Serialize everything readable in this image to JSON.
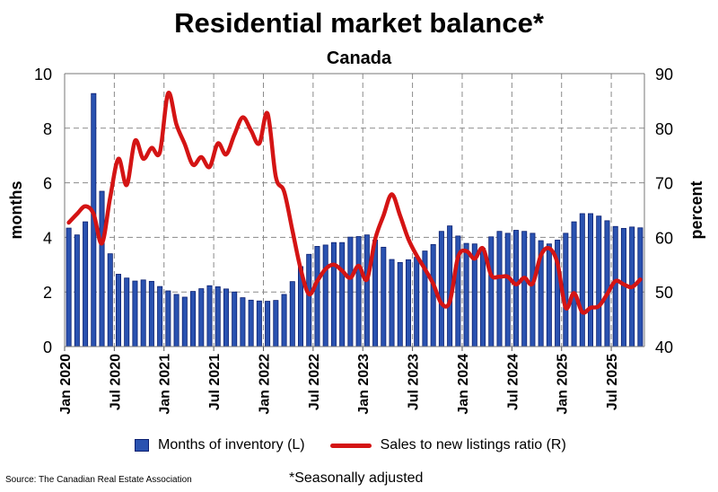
{
  "chart_data": {
    "type": "bar+line",
    "title": "Residential market balance*",
    "subtitle": "Canada",
    "ylabel_left": "months",
    "ylabel_right": "percent",
    "ylim_left": [
      0,
      10
    ],
    "ylim_right": [
      40,
      90
    ],
    "yticks_left": [
      "0",
      "2",
      "4",
      "6",
      "8",
      "10"
    ],
    "yticks_right": [
      "40",
      "50",
      "60",
      "70",
      "80",
      "90"
    ],
    "xtick_labels": [
      "Jan 2020",
      "Jul 2020",
      "Jan 2021",
      "Jul 2021",
      "Jan 2022",
      "Jul 2022",
      "Jan 2023",
      "Jul 2023",
      "Jan 2024",
      "Jul 2024",
      "Jan 2025",
      "Jul 2025"
    ],
    "x_start": "Jan 2020",
    "x_end": "Oct 2025",
    "grid": true,
    "legend_placement": "bottom",
    "series": [
      {
        "name": "Months of inventory (L)",
        "type": "bar",
        "axis": "left",
        "color": "#2a52b0",
        "values": [
          4.34,
          4.09,
          4.57,
          9.27,
          5.69,
          3.4,
          2.65,
          2.51,
          2.4,
          2.44,
          2.39,
          2.2,
          2.04,
          1.91,
          1.81,
          2.02,
          2.12,
          2.23,
          2.19,
          2.11,
          2.0,
          1.79,
          1.7,
          1.67,
          1.66,
          1.69,
          1.91,
          2.38,
          2.93,
          3.38,
          3.67,
          3.72,
          3.81,
          3.81,
          4.01,
          4.03,
          4.09,
          3.9,
          3.64,
          3.19,
          3.08,
          3.18,
          3.27,
          3.5,
          3.74,
          4.22,
          4.42,
          4.05,
          3.78,
          3.76,
          3.6,
          4.02,
          4.22,
          4.15,
          4.26,
          4.22,
          4.15,
          3.88,
          3.76,
          3.9,
          4.15,
          4.57,
          4.87,
          4.87,
          4.78,
          4.61,
          4.4,
          4.33,
          4.38,
          4.35
        ]
      },
      {
        "name": "Sales to new listings ratio (R)",
        "type": "line",
        "axis": "right",
        "color": "#d41414",
        "values": [
          62.7,
          64.3,
          65.7,
          64.3,
          58.9,
          67.3,
          74.4,
          69.6,
          77.7,
          74.4,
          76.4,
          75.6,
          86.4,
          80.7,
          77.1,
          73.3,
          74.7,
          72.9,
          77.2,
          75.2,
          78.8,
          82.0,
          79.6,
          77.2,
          82.7,
          71.1,
          68.4,
          61.3,
          54.2,
          49.6,
          52.0,
          54.2,
          55.0,
          53.9,
          52.6,
          54.8,
          52.3,
          59.7,
          64.0,
          67.9,
          64.0,
          59.7,
          56.7,
          54.2,
          51.5,
          47.9,
          48.2,
          56.4,
          57.5,
          56.1,
          58.0,
          53.1,
          52.8,
          52.8,
          51.4,
          52.6,
          51.5,
          56.7,
          58.0,
          55.3,
          47.1,
          49.8,
          46.3,
          47.1,
          47.4,
          49.6,
          52.0,
          51.4,
          50.9,
          52.3
        ]
      }
    ],
    "source": "Source: The Canadian Real Estate Association",
    "footnote": "*Seasonally adjusted"
  }
}
